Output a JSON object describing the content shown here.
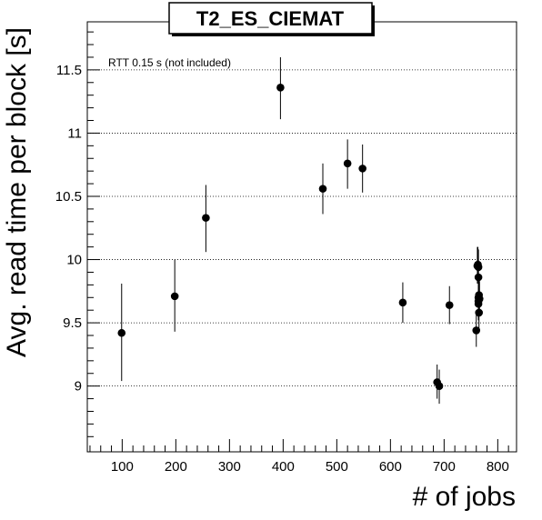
{
  "chart_data": {
    "type": "scatter",
    "title": "T2_ES_CIEMAT",
    "xlabel": "# of jobs",
    "ylabel": "Avg. read time per block [s]",
    "annotation": "RTT 0.15 s (not included)",
    "xlim": [
      35,
      835
    ],
    "ylim": [
      8.48,
      11.88
    ],
    "x_ticks": [
      100,
      200,
      300,
      400,
      500,
      600,
      700,
      800
    ],
    "y_ticks": [
      9,
      9.5,
      10,
      10.5,
      11,
      11.5
    ],
    "x_tick_labels": [
      "100",
      "200",
      "300",
      "400",
      "500",
      "600",
      "700",
      "800"
    ],
    "y_tick_labels": [
      "9",
      "9.5",
      "10",
      "10.5",
      "11",
      "11.5"
    ],
    "grid": "horizontal dotted at major y ticks",
    "marker_color": "#000000",
    "points": [
      {
        "x": 99,
        "y": 9.42,
        "ylo": 9.04,
        "yhi": 9.81
      },
      {
        "x": 198,
        "y": 9.71,
        "ylo": 9.43,
        "yhi": 10.0
      },
      {
        "x": 256,
        "y": 10.33,
        "ylo": 10.06,
        "yhi": 10.59
      },
      {
        "x": 395,
        "y": 11.36,
        "ylo": 11.11,
        "yhi": 11.6
      },
      {
        "x": 474,
        "y": 10.56,
        "ylo": 10.36,
        "yhi": 10.76
      },
      {
        "x": 520,
        "y": 10.76,
        "ylo": 10.56,
        "yhi": 10.95
      },
      {
        "x": 548,
        "y": 10.72,
        "ylo": 10.53,
        "yhi": 10.91
      },
      {
        "x": 623,
        "y": 9.66,
        "ylo": 9.5,
        "yhi": 9.82
      },
      {
        "x": 687,
        "y": 9.03,
        "ylo": 8.9,
        "yhi": 9.17
      },
      {
        "x": 691,
        "y": 9.0,
        "ylo": 8.86,
        "yhi": 9.13
      },
      {
        "x": 710,
        "y": 9.64,
        "ylo": 9.49,
        "yhi": 9.79
      },
      {
        "x": 760,
        "y": 9.44,
        "ylo": 9.31,
        "yhi": 9.57
      },
      {
        "x": 762,
        "y": 9.95,
        "ylo": 9.81,
        "yhi": 10.1
      },
      {
        "x": 763,
        "y": 9.96,
        "ylo": 9.82,
        "yhi": 10.1
      },
      {
        "x": 764,
        "y": 9.94,
        "ylo": 9.8,
        "yhi": 10.08
      },
      {
        "x": 764,
        "y": 9.86,
        "ylo": 9.72,
        "yhi": 10.0
      },
      {
        "x": 764,
        "y": 9.7,
        "ylo": 9.57,
        "yhi": 9.84
      },
      {
        "x": 764,
        "y": 9.67,
        "ylo": 9.54,
        "yhi": 9.8
      },
      {
        "x": 764,
        "y": 9.65,
        "ylo": 9.52,
        "yhi": 9.79
      },
      {
        "x": 765,
        "y": 9.58,
        "ylo": 9.45,
        "yhi": 9.71
      },
      {
        "x": 765,
        "y": 9.72,
        "ylo": 9.58,
        "yhi": 9.86
      },
      {
        "x": 766,
        "y": 9.69,
        "ylo": 9.55,
        "yhi": 9.83
      }
    ]
  }
}
